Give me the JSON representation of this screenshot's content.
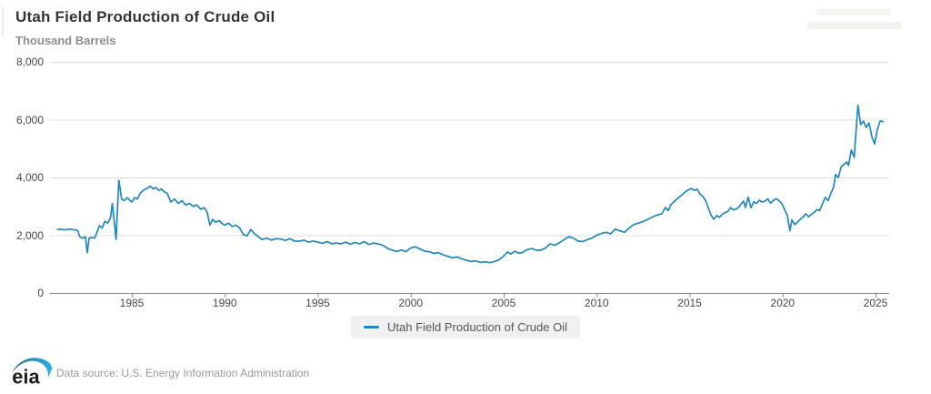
{
  "header": {
    "title": "Utah Field Production of Crude Oil",
    "units_label": "Thousand Barrels"
  },
  "legend": {
    "label": "Utah Field Production of Crude Oil"
  },
  "footer": {
    "logo_text": "eia",
    "source": "Data source: U.S. Energy Information Administration"
  },
  "colors": {
    "line": "#2187bb",
    "grid": "#dcdcdc",
    "axis": "#8a8a8a",
    "title": "#333333",
    "muted": "#8e8e8e",
    "legend_bg": "#f0f0f0",
    "logo_swoosh_start": "#23688f",
    "logo_swoosh_end": "#2ab1e5"
  },
  "chart_data": {
    "type": "line",
    "title": "Utah Field Production of Crude Oil",
    "xlabel": "",
    "ylabel": "Thousand Barrels",
    "xlim": [
      1980.6,
      2025.8
    ],
    "ylim": [
      0,
      8000
    ],
    "grid": true,
    "legend_position": "bottom",
    "x_ticks": [
      1985,
      1990,
      1995,
      2000,
      2005,
      2010,
      2015,
      2020,
      2025
    ],
    "x_tick_labels": [
      "1985",
      "1990",
      "1995",
      "2000",
      "2005",
      "2010",
      "2015",
      "2020",
      "2025"
    ],
    "y_ticks": [
      0,
      2000,
      4000,
      6000,
      8000
    ],
    "y_tick_labels": [
      "0",
      "2,000",
      "4,000",
      "6,000",
      "8,000"
    ],
    "series": [
      {
        "name": "Utah Field Production of Crude Oil",
        "points": [
          [
            1981.0,
            2200
          ],
          [
            1981.17,
            2210
          ],
          [
            1981.33,
            2190
          ],
          [
            1981.5,
            2200
          ],
          [
            1981.67,
            2210
          ],
          [
            1981.83,
            2195
          ],
          [
            1982.0,
            2185
          ],
          [
            1982.1,
            2150
          ],
          [
            1982.2,
            1950
          ],
          [
            1982.35,
            1900
          ],
          [
            1982.5,
            1950
          ],
          [
            1982.6,
            1400
          ],
          [
            1982.7,
            1900
          ],
          [
            1982.85,
            1925
          ],
          [
            1983.0,
            1900
          ],
          [
            1983.1,
            2050
          ],
          [
            1983.25,
            2330
          ],
          [
            1983.4,
            2250
          ],
          [
            1983.55,
            2480
          ],
          [
            1983.7,
            2420
          ],
          [
            1983.85,
            2600
          ],
          [
            1983.95,
            3100
          ],
          [
            1984.05,
            2500
          ],
          [
            1984.15,
            1850
          ],
          [
            1984.3,
            3900
          ],
          [
            1984.45,
            3250
          ],
          [
            1984.6,
            3200
          ],
          [
            1984.75,
            3300
          ],
          [
            1984.9,
            3200
          ],
          [
            1985.0,
            3150
          ],
          [
            1985.15,
            3300
          ],
          [
            1985.3,
            3250
          ],
          [
            1985.45,
            3450
          ],
          [
            1985.6,
            3550
          ],
          [
            1985.75,
            3600
          ],
          [
            1985.9,
            3650
          ],
          [
            1986.0,
            3700
          ],
          [
            1986.15,
            3600
          ],
          [
            1986.3,
            3650
          ],
          [
            1986.45,
            3550
          ],
          [
            1986.6,
            3600
          ],
          [
            1986.75,
            3500
          ],
          [
            1986.9,
            3450
          ],
          [
            1987.1,
            3150
          ],
          [
            1987.3,
            3250
          ],
          [
            1987.5,
            3100
          ],
          [
            1987.7,
            3200
          ],
          [
            1987.9,
            3050
          ],
          [
            1988.1,
            3100
          ],
          [
            1988.3,
            3000
          ],
          [
            1988.5,
            3050
          ],
          [
            1988.7,
            2900
          ],
          [
            1988.9,
            2950
          ],
          [
            1989.05,
            2800
          ],
          [
            1989.2,
            2350
          ],
          [
            1989.35,
            2550
          ],
          [
            1989.5,
            2450
          ],
          [
            1989.7,
            2500
          ],
          [
            1989.85,
            2400
          ],
          [
            1990.0,
            2350
          ],
          [
            1990.2,
            2420
          ],
          [
            1990.4,
            2300
          ],
          [
            1990.6,
            2350
          ],
          [
            1990.8,
            2250
          ],
          [
            1991.0,
            2020
          ],
          [
            1991.2,
            1980
          ],
          [
            1991.4,
            2200
          ],
          [
            1991.6,
            2050
          ],
          [
            1991.8,
            1950
          ],
          [
            1992.0,
            1850
          ],
          [
            1992.25,
            1900
          ],
          [
            1992.5,
            1830
          ],
          [
            1992.75,
            1880
          ],
          [
            1993.0,
            1870
          ],
          [
            1993.25,
            1820
          ],
          [
            1993.5,
            1880
          ],
          [
            1993.75,
            1800
          ],
          [
            1994.0,
            1790
          ],
          [
            1994.25,
            1830
          ],
          [
            1994.5,
            1760
          ],
          [
            1994.75,
            1800
          ],
          [
            1995.0,
            1760
          ],
          [
            1995.25,
            1720
          ],
          [
            1995.5,
            1780
          ],
          [
            1995.75,
            1700
          ],
          [
            1996.0,
            1730
          ],
          [
            1996.25,
            1700
          ],
          [
            1996.5,
            1760
          ],
          [
            1996.75,
            1690
          ],
          [
            1997.0,
            1750
          ],
          [
            1997.25,
            1700
          ],
          [
            1997.5,
            1780
          ],
          [
            1997.75,
            1680
          ],
          [
            1998.0,
            1730
          ],
          [
            1998.25,
            1700
          ],
          [
            1998.5,
            1650
          ],
          [
            1998.75,
            1550
          ],
          [
            1999.0,
            1480
          ],
          [
            1999.25,
            1440
          ],
          [
            1999.5,
            1490
          ],
          [
            1999.75,
            1430
          ],
          [
            2000.0,
            1560
          ],
          [
            2000.25,
            1600
          ],
          [
            2000.5,
            1520
          ],
          [
            2000.75,
            1450
          ],
          [
            2001.0,
            1430
          ],
          [
            2001.25,
            1370
          ],
          [
            2001.5,
            1400
          ],
          [
            2001.75,
            1320
          ],
          [
            2002.0,
            1270
          ],
          [
            2002.25,
            1220
          ],
          [
            2002.5,
            1250
          ],
          [
            2002.75,
            1180
          ],
          [
            2003.0,
            1130
          ],
          [
            2003.25,
            1090
          ],
          [
            2003.5,
            1110
          ],
          [
            2003.75,
            1060
          ],
          [
            2004.0,
            1080
          ],
          [
            2004.25,
            1050
          ],
          [
            2004.5,
            1090
          ],
          [
            2004.75,
            1150
          ],
          [
            2005.0,
            1280
          ],
          [
            2005.2,
            1420
          ],
          [
            2005.4,
            1350
          ],
          [
            2005.6,
            1450
          ],
          [
            2005.8,
            1380
          ],
          [
            2006.0,
            1400
          ],
          [
            2006.25,
            1500
          ],
          [
            2006.5,
            1540
          ],
          [
            2006.75,
            1480
          ],
          [
            2007.0,
            1480
          ],
          [
            2007.25,
            1560
          ],
          [
            2007.5,
            1700
          ],
          [
            2007.75,
            1650
          ],
          [
            2008.0,
            1740
          ],
          [
            2008.25,
            1850
          ],
          [
            2008.5,
            1950
          ],
          [
            2008.75,
            1900
          ],
          [
            2009.0,
            1800
          ],
          [
            2009.25,
            1780
          ],
          [
            2009.5,
            1850
          ],
          [
            2009.75,
            1900
          ],
          [
            2010.0,
            2000
          ],
          [
            2010.25,
            2060
          ],
          [
            2010.5,
            2100
          ],
          [
            2010.75,
            2050
          ],
          [
            2011.0,
            2210
          ],
          [
            2011.25,
            2150
          ],
          [
            2011.5,
            2100
          ],
          [
            2011.75,
            2250
          ],
          [
            2012.0,
            2370
          ],
          [
            2012.25,
            2420
          ],
          [
            2012.5,
            2480
          ],
          [
            2012.75,
            2550
          ],
          [
            2013.0,
            2630
          ],
          [
            2013.25,
            2700
          ],
          [
            2013.5,
            2740
          ],
          [
            2013.7,
            2960
          ],
          [
            2013.85,
            2850
          ],
          [
            2014.0,
            3060
          ],
          [
            2014.2,
            3180
          ],
          [
            2014.4,
            3300
          ],
          [
            2014.6,
            3400
          ],
          [
            2014.8,
            3520
          ],
          [
            2015.0,
            3590
          ],
          [
            2015.1,
            3620
          ],
          [
            2015.25,
            3550
          ],
          [
            2015.4,
            3600
          ],
          [
            2015.55,
            3430
          ],
          [
            2015.7,
            3350
          ],
          [
            2015.85,
            3210
          ],
          [
            2016.0,
            2960
          ],
          [
            2016.15,
            2700
          ],
          [
            2016.3,
            2550
          ],
          [
            2016.45,
            2680
          ],
          [
            2016.6,
            2620
          ],
          [
            2016.75,
            2720
          ],
          [
            2016.9,
            2780
          ],
          [
            2017.05,
            2820
          ],
          [
            2017.2,
            2950
          ],
          [
            2017.35,
            2880
          ],
          [
            2017.5,
            2900
          ],
          [
            2017.65,
            2980
          ],
          [
            2017.8,
            3110
          ],
          [
            2017.9,
            3180
          ],
          [
            2018.0,
            2960
          ],
          [
            2018.15,
            3320
          ],
          [
            2018.3,
            2950
          ],
          [
            2018.45,
            3160
          ],
          [
            2018.6,
            3100
          ],
          [
            2018.75,
            3210
          ],
          [
            2018.9,
            3150
          ],
          [
            2019.05,
            3180
          ],
          [
            2019.2,
            3260
          ],
          [
            2019.35,
            3110
          ],
          [
            2019.5,
            3200
          ],
          [
            2019.65,
            3260
          ],
          [
            2019.8,
            3200
          ],
          [
            2019.95,
            3110
          ],
          [
            2020.1,
            2900
          ],
          [
            2020.25,
            2680
          ],
          [
            2020.4,
            2160
          ],
          [
            2020.5,
            2530
          ],
          [
            2020.65,
            2370
          ],
          [
            2020.8,
            2450
          ],
          [
            2020.95,
            2550
          ],
          [
            2021.1,
            2630
          ],
          [
            2021.25,
            2740
          ],
          [
            2021.4,
            2640
          ],
          [
            2021.55,
            2720
          ],
          [
            2021.7,
            2790
          ],
          [
            2021.85,
            2890
          ],
          [
            2022.0,
            2850
          ],
          [
            2022.15,
            3100
          ],
          [
            2022.3,
            3310
          ],
          [
            2022.45,
            3200
          ],
          [
            2022.6,
            3450
          ],
          [
            2022.75,
            3680
          ],
          [
            2022.85,
            4100
          ],
          [
            2023.0,
            4000
          ],
          [
            2023.15,
            4370
          ],
          [
            2023.3,
            4450
          ],
          [
            2023.45,
            4530
          ],
          [
            2023.55,
            4420
          ],
          [
            2023.7,
            4950
          ],
          [
            2023.85,
            4700
          ],
          [
            2024.05,
            6500
          ],
          [
            2024.2,
            5830
          ],
          [
            2024.35,
            5950
          ],
          [
            2024.5,
            5730
          ],
          [
            2024.65,
            5890
          ],
          [
            2024.8,
            5420
          ],
          [
            2024.95,
            5160
          ],
          [
            2025.1,
            5670
          ],
          [
            2025.25,
            5950
          ],
          [
            2025.4,
            5930
          ]
        ]
      }
    ]
  }
}
